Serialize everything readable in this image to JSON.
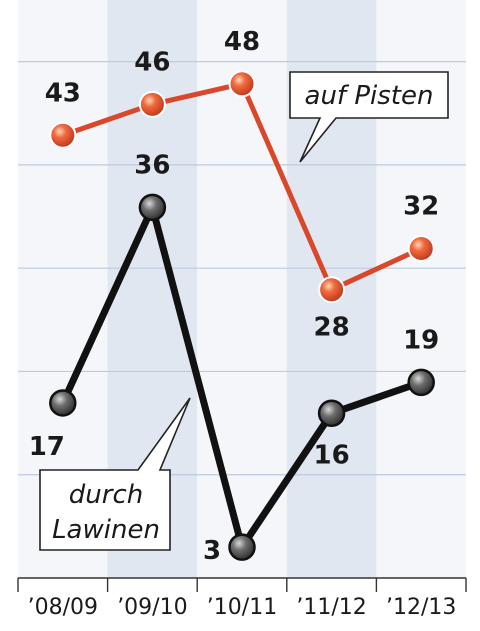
{
  "chart_data": {
    "type": "line",
    "categories": [
      "’08/09",
      "’09/10",
      "’10/11",
      "’11/12",
      "’12/13"
    ],
    "series": [
      {
        "name": "auf Pisten",
        "values": [
          43,
          46,
          48,
          28,
          32
        ],
        "color": "#d9482b"
      },
      {
        "name": "durch Lawinen",
        "values": [
          17,
          36,
          3,
          16,
          19
        ],
        "color": "#111111"
      }
    ],
    "ylim": [
      0,
      54
    ],
    "grid": true,
    "alternating_column_shading": true,
    "legend": "inline-callouts",
    "annotations": {
      "pisten": "auf Pisten",
      "lawinen_line1": "durch",
      "lawinen_line2": "Lawinen"
    }
  },
  "colors": {
    "background": "#ffffff",
    "band_light": "#f4f6fa",
    "band_dark": "#e1e7f1",
    "grid": "#bccbe0",
    "axis": "#333333"
  }
}
